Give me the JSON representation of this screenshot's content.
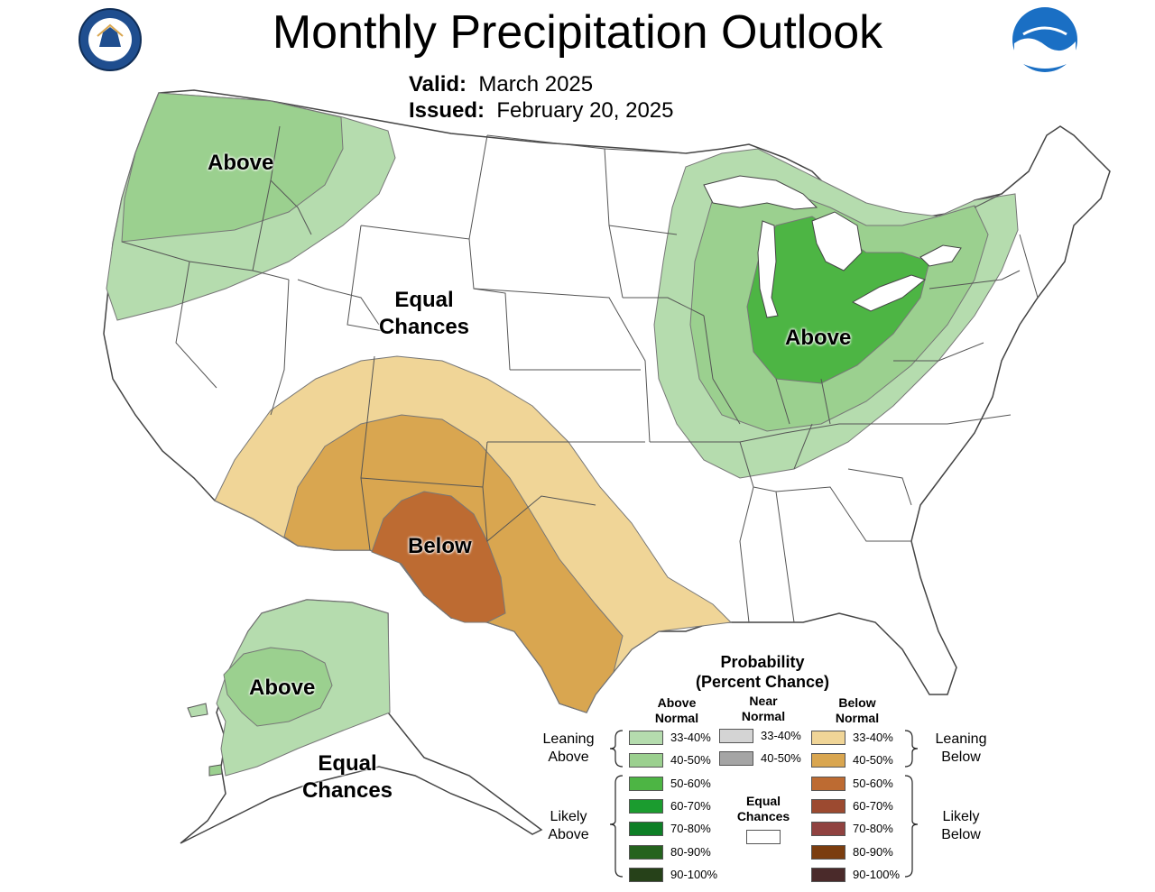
{
  "title": "Monthly Precipitation Outlook",
  "valid_label": "Valid:",
  "valid_value": "March 2025",
  "issued_label": "Issued:",
  "issued_value": "February 20, 2025",
  "map_labels": {
    "pnw": "Above",
    "ec_line1": "Equal",
    "ec_line2": "Chances",
    "southwest": "Below",
    "great_lakes": "Above",
    "alaska_above": "Above",
    "alaska_ec_line1": "Equal",
    "alaska_ec_line2": "Chances"
  },
  "legend": {
    "title_line1": "Probability",
    "title_line2": "(Percent Chance)",
    "above_head_1": "Above",
    "above_head_2": "Normal",
    "near_head_1": "Near",
    "near_head_2": "Normal",
    "below_head_1": "Below",
    "below_head_2": "Normal",
    "leaning_above_1": "Leaning",
    "leaning_above_2": "Above",
    "likely_above_1": "Likely",
    "likely_above_2": "Above",
    "leaning_below_1": "Leaning",
    "leaning_below_2": "Below",
    "likely_below_1": "Likely",
    "likely_below_2": "Below",
    "equal_1": "Equal",
    "equal_2": "Chances",
    "above_bins": [
      {
        "label": "33-40%",
        "color": "#b5dcae"
      },
      {
        "label": "40-50%",
        "color": "#9bd08f"
      },
      {
        "label": "50-60%",
        "color": "#4db544"
      },
      {
        "label": "60-70%",
        "color": "#1b9c2f"
      },
      {
        "label": "70-80%",
        "color": "#0d7f26"
      },
      {
        "label": "80-90%",
        "color": "#25631e"
      },
      {
        "label": "90-100%",
        "color": "#264119"
      }
    ],
    "near_bins": [
      {
        "label": "33-40%",
        "color": "#d4d4d4"
      },
      {
        "label": "40-50%",
        "color": "#a5a5a5"
      }
    ],
    "below_bins": [
      {
        "label": "33-40%",
        "color": "#f0d597"
      },
      {
        "label": "40-50%",
        "color": "#d9a650"
      },
      {
        "label": "50-60%",
        "color": "#bd6b32"
      },
      {
        "label": "60-70%",
        "color": "#9c4a30"
      },
      {
        "label": "70-80%",
        "color": "#904240"
      },
      {
        "label": "80-90%",
        "color": "#7b3d0f"
      },
      {
        "label": "90-100%",
        "color": "#4a2a2a"
      }
    ]
  },
  "colors": {
    "above_33_40": "#b5dcae",
    "above_40_50": "#9bd08f",
    "above_50_60": "#4db544",
    "below_33_40": "#f0d597",
    "below_40_50": "#d9a650",
    "below_50_60": "#bd6b32",
    "borders": "#555555",
    "noaa_blue": "#1a6fc4"
  }
}
